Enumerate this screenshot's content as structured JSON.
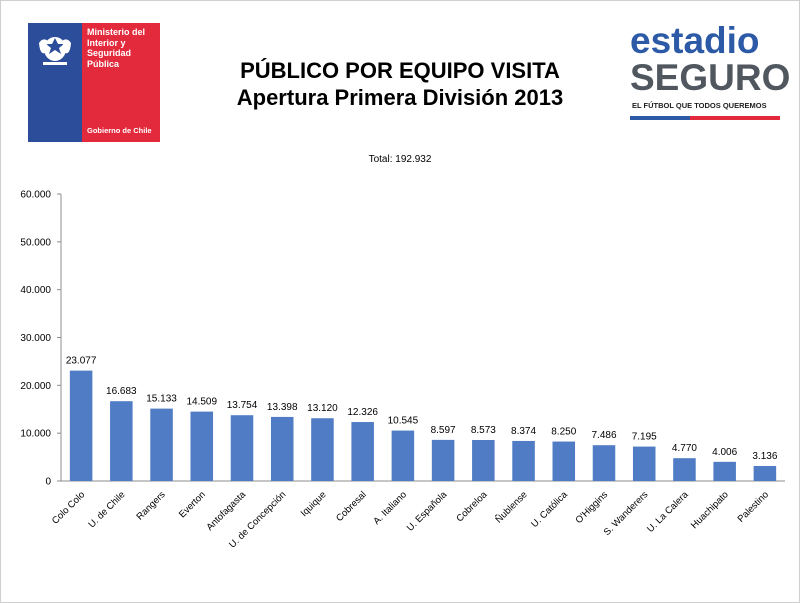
{
  "header": {
    "gov_logo": {
      "lines": [
        "Ministerio del",
        "Interior y",
        "Seguridad",
        "Pública"
      ],
      "footer": "Gobierno de Chile",
      "colors": {
        "blue": "#2c4e9a",
        "red": "#e22a3c"
      }
    },
    "title_line1": "PÚBLICO POR EQUIPO VISITA",
    "title_line2": "Apertura Primera División 2013",
    "brand_logo": {
      "word1": "estadio",
      "word2": "SEGURO",
      "tagline": "EL FÚTBOL QUE TODOS QUEREMOS",
      "colors": {
        "blue": "#2c5aa6",
        "gray": "#50575f",
        "red": "#e22a3c"
      }
    },
    "total_text": "Total: 192.932"
  },
  "chart_data": {
    "type": "bar",
    "categories": [
      "Colo Colo",
      "U. de Chile",
      "Rangers",
      "Everton",
      "Antofagasta",
      "U. de Concepción",
      "Iquique",
      "Cobresal",
      "A. Italiano",
      "U. Española",
      "Cobreloa",
      "Ñublense",
      "U. Católica",
      "O'Higgins",
      "S. Wanderers",
      "U. La Calera",
      "Huachipato",
      "Palestino"
    ],
    "values": [
      23077,
      16683,
      15133,
      14509,
      13754,
      13398,
      13120,
      12326,
      10545,
      8597,
      8573,
      8374,
      8250,
      7486,
      7195,
      4770,
      4006,
      3136
    ],
    "value_labels": [
      "23.077",
      "16.683",
      "15.133",
      "14.509",
      "13.754",
      "13.398",
      "13.120",
      "12.326",
      "10.545",
      "8.597",
      "8.573",
      "8.374",
      "8.250",
      "7.486",
      "7.195",
      "4.770",
      "4.006",
      "3.136"
    ],
    "ylim": [
      0,
      60000
    ],
    "yticks": [
      0,
      10000,
      20000,
      30000,
      40000,
      50000,
      60000
    ],
    "ytick_labels": [
      "0",
      "10.000",
      "20.000",
      "30.000",
      "40.000",
      "50.000",
      "60.000"
    ],
    "bar_color": "#4f7cc4",
    "grid": false,
    "legend": "none"
  }
}
